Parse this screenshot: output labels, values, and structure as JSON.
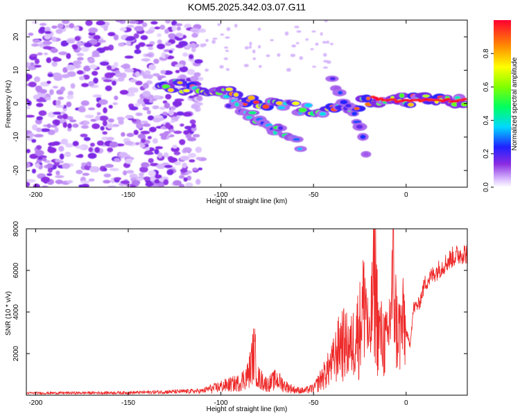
{
  "chart_data": [
    {
      "type": "heatmap",
      "title": "KOM5.2025.342.03.07.G11",
      "xlabel": "Height of straight line (km)",
      "ylabel": "Frequency (Hz)",
      "xlim": [
        -205,
        33
      ],
      "ylim": [
        -25,
        25
      ],
      "xticks": [
        -200,
        -150,
        -100,
        -50,
        0
      ],
      "yticks": [
        -20,
        -10,
        0,
        10,
        20
      ],
      "colorbar": {
        "label": "Normalized spectral amplitude",
        "range": [
          0.0,
          1.0
        ],
        "ticks": [
          "0.0",
          "0.2",
          "0.4",
          "0.6",
          "0.8"
        ]
      },
      "features": [
        {
          "name": "scattered noise",
          "x_range": [
            -205,
            -110
          ],
          "y_range": [
            -25,
            25
          ],
          "amplitude": 0.1
        },
        {
          "name": "main ridge",
          "points": [
            [
              -133,
              5.5
            ],
            [
              -120,
              5
            ],
            [
              -105,
              4
            ],
            [
              -95,
              3
            ],
            [
              -85,
              1
            ],
            [
              -75,
              0
            ],
            [
              -60,
              -1
            ],
            [
              -45,
              -2
            ],
            [
              -30,
              -1
            ],
            [
              -15,
              1.5
            ],
            [
              0,
              1
            ],
            [
              10,
              1
            ],
            [
              20,
              1
            ],
            [
              33,
              1
            ]
          ],
          "amplitude": 0.95
        },
        {
          "name": "falling branch",
          "points": [
            [
              -95,
              0
            ],
            [
              -85,
              -3
            ],
            [
              -75,
              -6
            ],
            [
              -65,
              -9
            ],
            [
              -55,
              -13
            ]
          ],
          "amplitude": 0.55
        },
        {
          "name": "diagonal streak",
          "points": [
            [
              -40,
              6
            ],
            [
              -32,
              0
            ],
            [
              -25,
              -8
            ],
            [
              -20,
              -18
            ]
          ],
          "amplitude": 0.3
        }
      ]
    },
    {
      "type": "line",
      "xlabel": "Height of straight line (km)",
      "ylabel": "SNR (10 * v/v)",
      "xlim": [
        -205,
        33
      ],
      "ylim": [
        0,
        8000
      ],
      "xticks": [
        -200,
        -150,
        -100,
        -50,
        0
      ],
      "yticks": [
        2000,
        4000,
        6000,
        8000
      ],
      "series": [
        {
          "name": "SNR",
          "color": "#f03030",
          "x": [
            -205,
            -150,
            -110,
            -100,
            -90,
            -85,
            -82,
            -80,
            -75,
            -70,
            -65,
            -60,
            -55,
            -50,
            -45,
            -40,
            -35,
            -30,
            -25,
            -22,
            -20,
            -17,
            -15,
            -12,
            -10,
            -7,
            -5,
            -3,
            -1,
            0,
            2,
            4,
            7,
            10,
            15,
            20,
            25,
            30,
            33
          ],
          "values": [
            100,
            120,
            200,
            500,
            700,
            1200,
            2500,
            1000,
            600,
            900,
            500,
            300,
            250,
            400,
            1200,
            2000,
            3500,
            3000,
            4500,
            6300,
            2800,
            8000,
            4000,
            3500,
            3200,
            7300,
            4200,
            4000,
            4800,
            3100,
            2500,
            4300,
            4500,
            5500,
            6000,
            6400,
            6800,
            7000,
            7000
          ]
        }
      ]
    }
  ],
  "colors": {
    "snr_line": "#ee2a2a",
    "noise_dark": "#6a0fd8",
    "noise_light": "#c9a6f5"
  }
}
